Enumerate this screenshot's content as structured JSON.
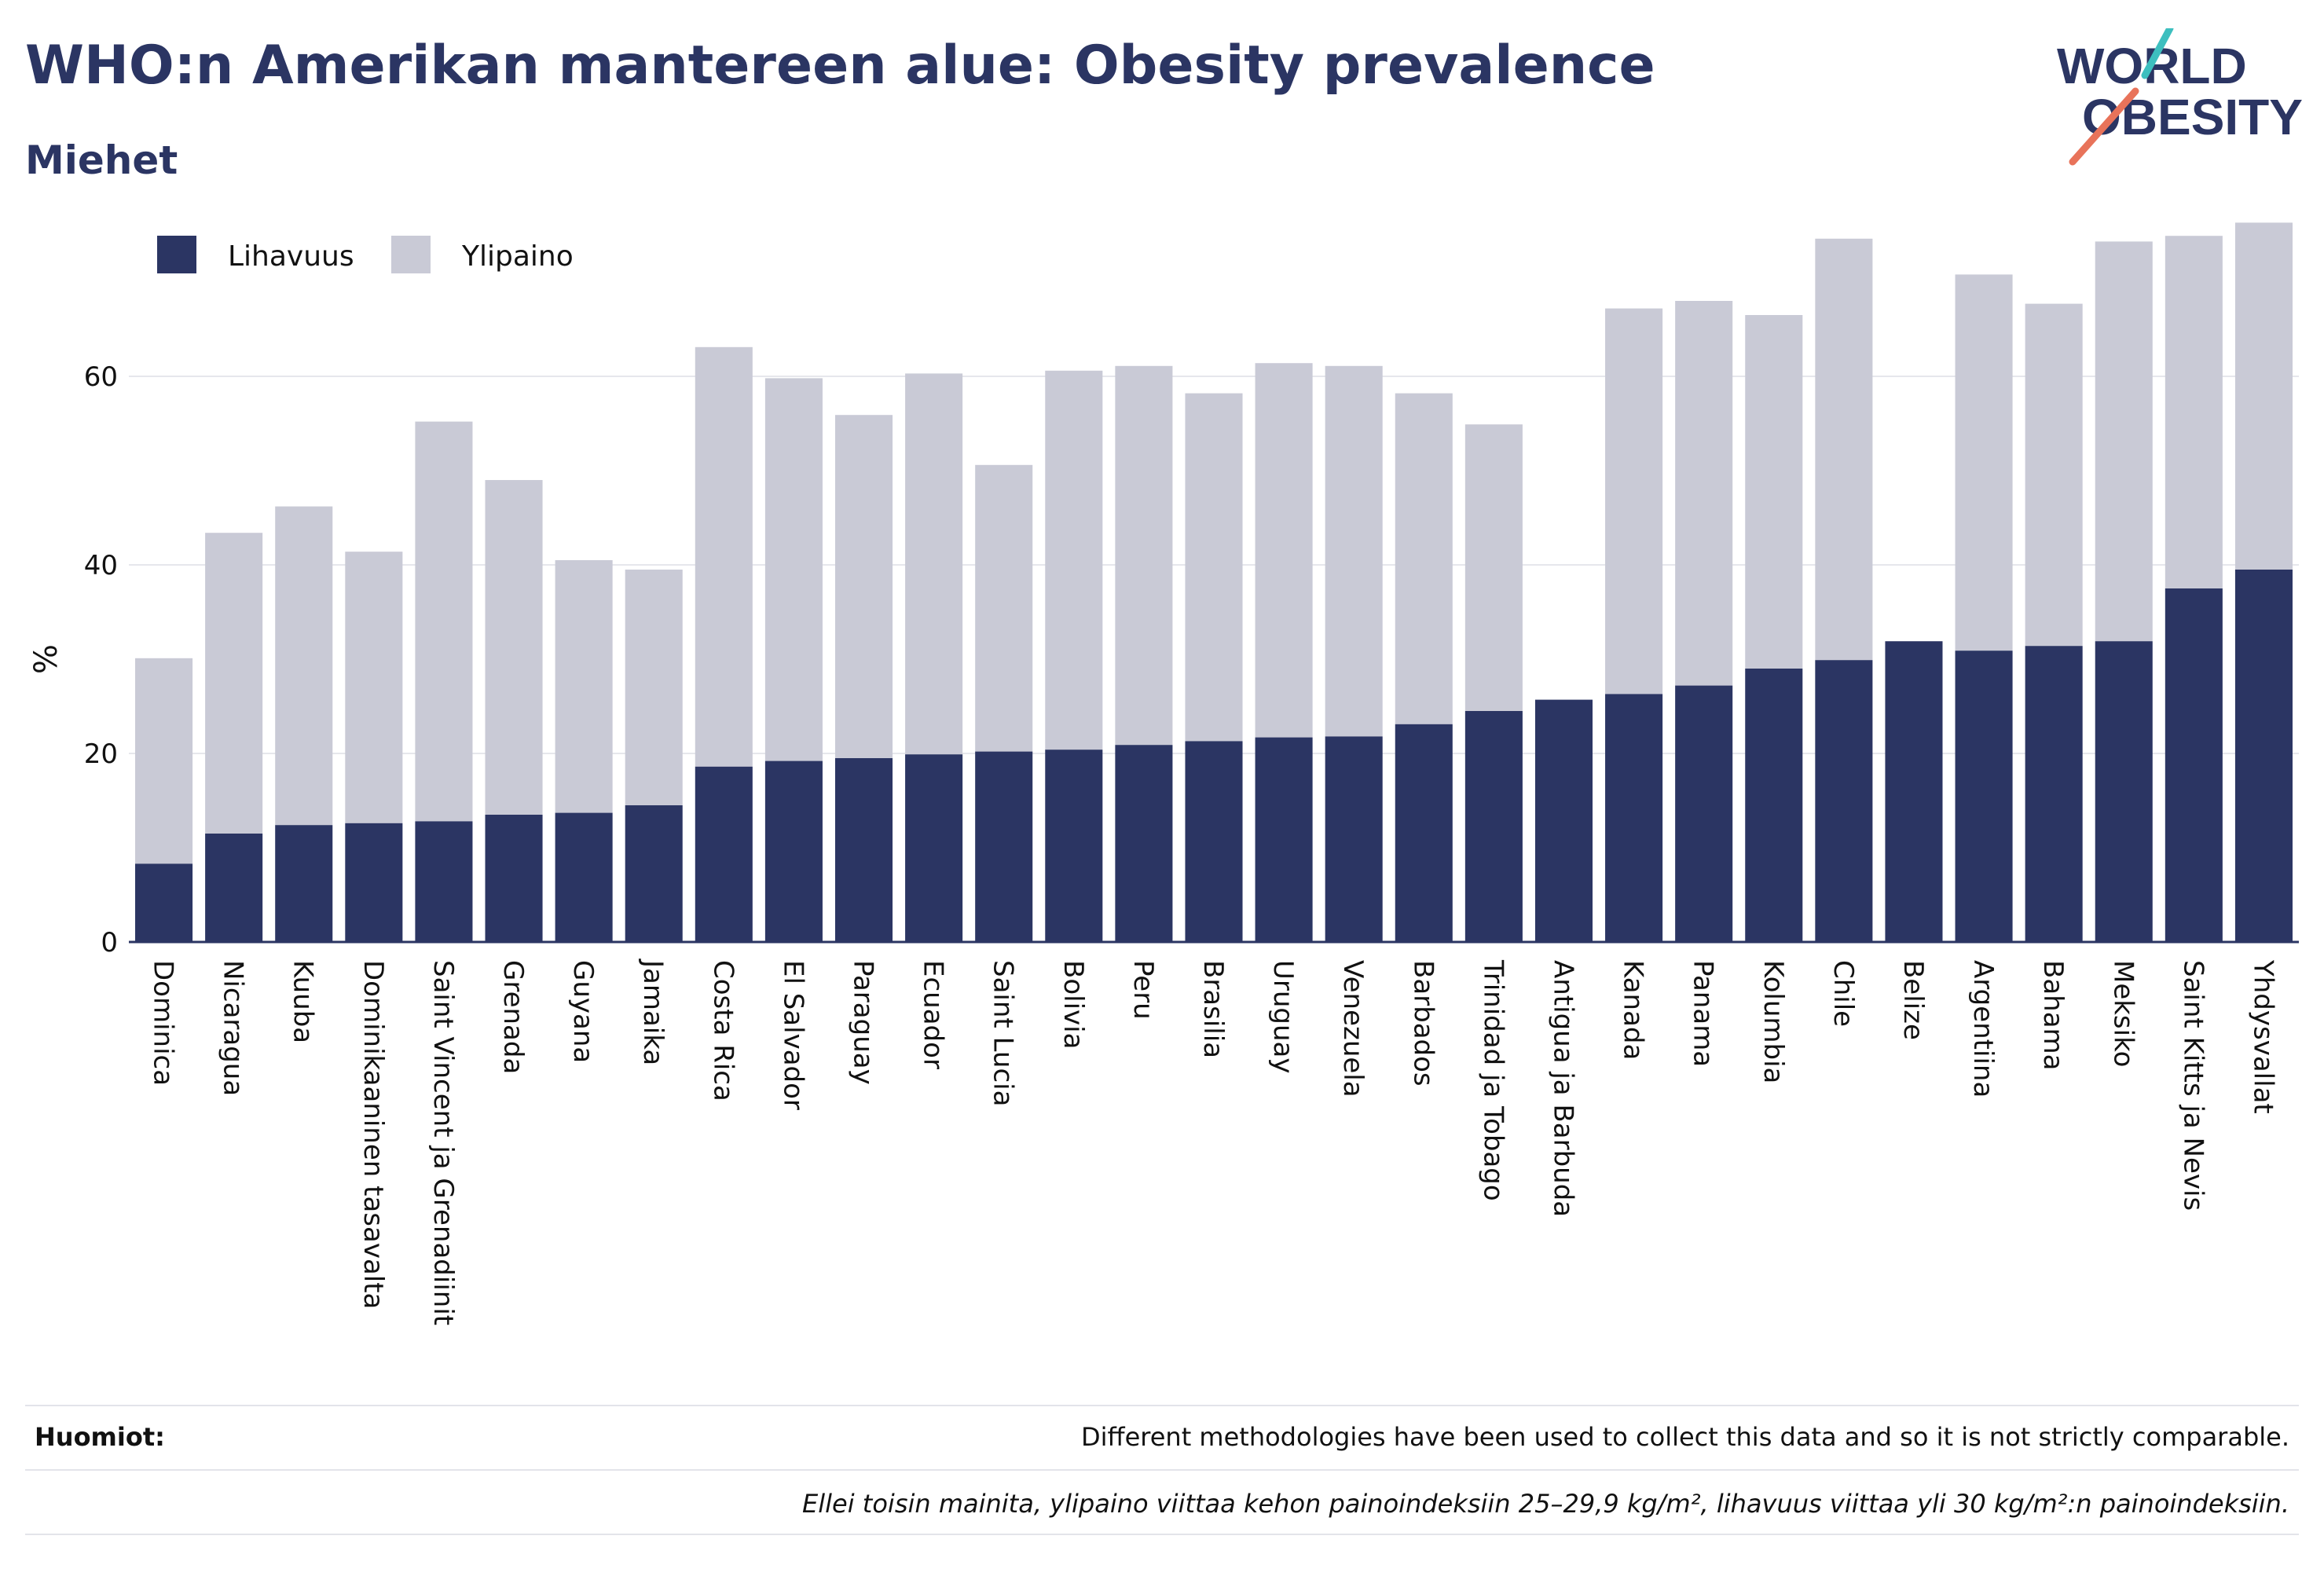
{
  "header": {
    "title": "WHO:n Amerikan mantereen alue: Obesity prevalence",
    "subtitle": "Miehet"
  },
  "logo": {
    "line1": "WORLD",
    "line2": "OBESITY"
  },
  "footer": {
    "notes_label": "Huomiot:",
    "notes_text": "Different methodologies have been used to collect this data and so it is not strictly comparable.",
    "definition_text": "Ellei toisin mainita, ylipaino viittaa kehon painoindeksiin 25–29,9 kg/m², lihavuus viittaa yli 30 kg/m²:n painoindeksiin."
  },
  "colors": {
    "obesity": "#2b3563",
    "overweight": "#c9cad6",
    "grid": "#e6e7ec",
    "axis": "#2b3563",
    "text": "#111111"
  },
  "chart_data": {
    "type": "bar",
    "stacked": true,
    "ylabel": "%",
    "xlabel": "",
    "ylim": [
      0,
      80
    ],
    "yticks": [
      0,
      20,
      40,
      60
    ],
    "grid": true,
    "legend_position": "top-left",
    "categories": [
      "Dominica",
      "Nicaragua",
      "Kuuba",
      "Dominikaaninen tasavalta",
      "Saint Vincent ja Grenadiinit",
      "Grenada",
      "Guyana",
      "Jamaika",
      "Costa Rica",
      "El Salvador",
      "Paraguay",
      "Ecuador",
      "Saint Lucia",
      "Bolivia",
      "Peru",
      "Brasilia",
      "Uruguay",
      "Venezuela",
      "Barbados",
      "Trinidad ja Tobago",
      "Antigua ja Barbuda",
      "Kanada",
      "Panama",
      "Kolumbia",
      "Chile",
      "Belize",
      "Argentiina",
      "Bahama",
      "Meksiko",
      "Saint Kitts ja Nevis",
      "Yhdysvallat"
    ],
    "series": [
      {
        "name": "Lihavuus",
        "values": [
          8.3,
          11.5,
          12.4,
          12.6,
          12.8,
          13.5,
          13.7,
          14.5,
          18.6,
          19.2,
          19.5,
          19.9,
          20.2,
          20.4,
          20.9,
          21.3,
          21.7,
          21.8,
          23.1,
          24.5,
          25.7,
          26.3,
          27.2,
          29.0,
          29.9,
          31.9,
          30.9,
          31.4,
          31.9,
          37.5,
          39.5
        ]
      },
      {
        "name": "Ylipaino",
        "values": [
          21.8,
          31.9,
          33.8,
          28.8,
          42.4,
          35.5,
          26.8,
          25.0,
          44.5,
          40.6,
          36.4,
          40.4,
          30.4,
          40.2,
          40.2,
          36.9,
          39.7,
          39.3,
          35.1,
          30.4,
          0,
          40.9,
          40.8,
          37.5,
          44.7,
          0,
          39.9,
          36.3,
          42.4,
          37.4,
          36.8
        ]
      }
    ]
  }
}
